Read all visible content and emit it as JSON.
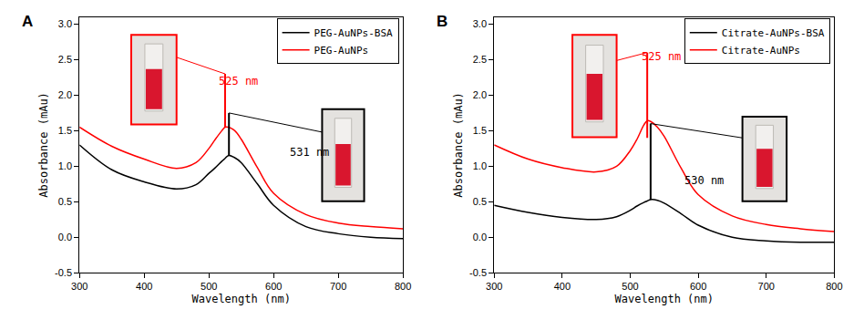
{
  "chart_data": [
    {
      "type": "line",
      "panel": "A",
      "x_label": "Wavelength (nm)",
      "y_label": "Absorbance (mAu)",
      "xlim": [
        300,
        800
      ],
      "xticks": [
        300,
        400,
        500,
        600,
        700,
        800
      ],
      "ylim": [
        -0.5,
        3.1
      ],
      "yticks": [
        -0.5,
        {
          "value": 0,
          "label": "0.0"
        },
        0.5,
        {
          "value": 1,
          "label": "1.0"
        },
        1.5,
        {
          "value": 2,
          "label": "2.0"
        },
        2.5,
        {
          "value": 3,
          "label": "3.0"
        }
      ],
      "legend": "upper right",
      "x": [
        300,
        350,
        400,
        450,
        480,
        500,
        510,
        520,
        525,
        530,
        540,
        550,
        575,
        600,
        650,
        700,
        750,
        800
      ],
      "series": [
        {
          "name": "PEG-AuNPs-BSA",
          "color": "#000000",
          "values": [
            1.3,
            0.95,
            0.78,
            0.68,
            0.74,
            0.9,
            0.98,
            1.07,
            1.11,
            1.15,
            1.12,
            1.05,
            0.75,
            0.45,
            0.15,
            0.05,
            0.0,
            -0.02
          ]
        },
        {
          "name": "PEG-AuNPs",
          "color": "#ff0000",
          "values": [
            1.55,
            1.28,
            1.1,
            0.97,
            1.05,
            1.25,
            1.38,
            1.5,
            1.55,
            1.55,
            1.5,
            1.38,
            0.98,
            0.62,
            0.32,
            0.2,
            0.15,
            0.12
          ]
        }
      ],
      "peak_lines": [
        {
          "x": 525,
          "y_from": 1.55,
          "y_to": 2.3,
          "color": "#ff0000"
        },
        {
          "x": 531,
          "y_from": 1.15,
          "y_to": 1.75,
          "color": "#000000"
        }
      ],
      "annotations": [
        {
          "text": "525 nm",
          "x": 546,
          "y": 2.2,
          "color": "#ff0000"
        },
        {
          "text": "531 nm",
          "x": 655,
          "y": 1.2,
          "color": "#000000"
        }
      ]
    },
    {
      "type": "line",
      "panel": "B",
      "x_label": "Wavelength (nm)",
      "y_label": "Absorbance (mAu)",
      "xlim": [
        300,
        800
      ],
      "xticks": [
        300,
        400,
        500,
        600,
        700,
        800
      ],
      "ylim": [
        -0.5,
        3.1
      ],
      "yticks": [
        -0.5,
        {
          "value": 0,
          "label": "0.0"
        },
        0.5,
        {
          "value": 1,
          "label": "1.0"
        },
        1.5,
        {
          "value": 2,
          "label": "2.0"
        },
        2.5,
        {
          "value": 3,
          "label": "3.0"
        }
      ],
      "legend": "upper right",
      "x": [
        300,
        350,
        400,
        450,
        480,
        500,
        510,
        520,
        525,
        530,
        540,
        550,
        575,
        600,
        650,
        700,
        750,
        800
      ],
      "series": [
        {
          "name": "Citrate-AuNPs-BSA",
          "color": "#000000",
          "values": [
            0.45,
            0.35,
            0.28,
            0.25,
            0.29,
            0.38,
            0.44,
            0.49,
            0.51,
            0.53,
            0.52,
            0.48,
            0.33,
            0.17,
            0.0,
            -0.05,
            -0.07,
            -0.07
          ]
        },
        {
          "name": "Citrate-AuNPs",
          "color": "#ff0000",
          "values": [
            1.3,
            1.1,
            0.98,
            0.92,
            1.0,
            1.22,
            1.38,
            1.58,
            1.64,
            1.63,
            1.55,
            1.42,
            0.97,
            0.6,
            0.3,
            0.18,
            0.12,
            0.08
          ]
        }
      ],
      "peak_lines": [
        {
          "x": 525,
          "y_from": 1.4,
          "y_to": 2.6,
          "color": "#ff0000"
        },
        {
          "x": 530,
          "y_from": 0.53,
          "y_to": 1.6,
          "color": "#000000"
        }
      ],
      "annotations": [
        {
          "text": "525 nm",
          "x": 545,
          "y": 2.55,
          "color": "#ff0000"
        },
        {
          "text": "530 nm",
          "x": 609,
          "y": 0.8,
          "color": "#000000"
        }
      ]
    }
  ]
}
